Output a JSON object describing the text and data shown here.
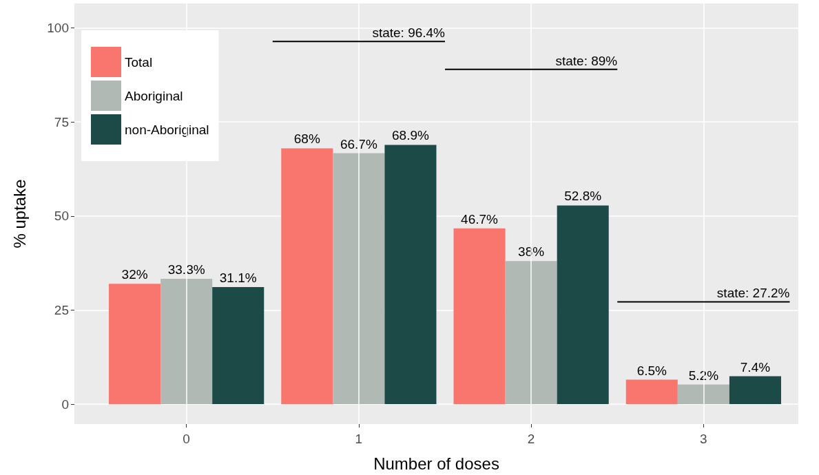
{
  "chart_data": {
    "type": "bar",
    "xlabel": "Number of doses",
    "ylabel": "% uptake",
    "x": [
      0,
      1,
      2,
      3
    ],
    "series": [
      {
        "name": "Total",
        "color": "#f8766d",
        "values": [
          32,
          68,
          46.7,
          6.5
        ],
        "value_labels": [
          "32%",
          "68%",
          "46.7%",
          "6.5%"
        ]
      },
      {
        "name": "Aboriginal",
        "color": "#b1b9b5",
        "values": [
          33.3,
          66.7,
          38,
          5.2
        ],
        "value_labels": [
          "33.3%",
          "66.7%",
          "38%",
          "5.2%"
        ]
      },
      {
        "name": "non-Aboriginal",
        "color": "#1b4a47",
        "values": [
          31.1,
          68.9,
          52.8,
          7.4
        ],
        "value_labels": [
          "31.1%",
          "68.9%",
          "52.8%",
          "7.4%"
        ]
      },
      {
        "name": "state: 96.4%",
        "type": "line",
        "color": "#000000",
        "x": [
          0.5,
          1.5
        ],
        "values": [
          96.4,
          96.4
        ]
      },
      {
        "name": "state: 89%",
        "type": "line",
        "color": "#000000",
        "x": [
          1.5,
          2.5
        ],
        "values": [
          89,
          89
        ]
      },
      {
        "name": "state: 27.2%",
        "type": "line",
        "color": "#000000",
        "x": [
          2.5,
          3.5
        ],
        "values": [
          27.2,
          27.2
        ]
      }
    ],
    "xlim": [
      -0.65,
      3.55
    ],
    "xticks": [
      0,
      1,
      2,
      3
    ],
    "ylim": [
      -5.3,
      106.5
    ],
    "yticks": [
      0,
      25,
      50,
      75,
      100
    ],
    "grid": true,
    "legend": "top left",
    "marker": "none"
  }
}
